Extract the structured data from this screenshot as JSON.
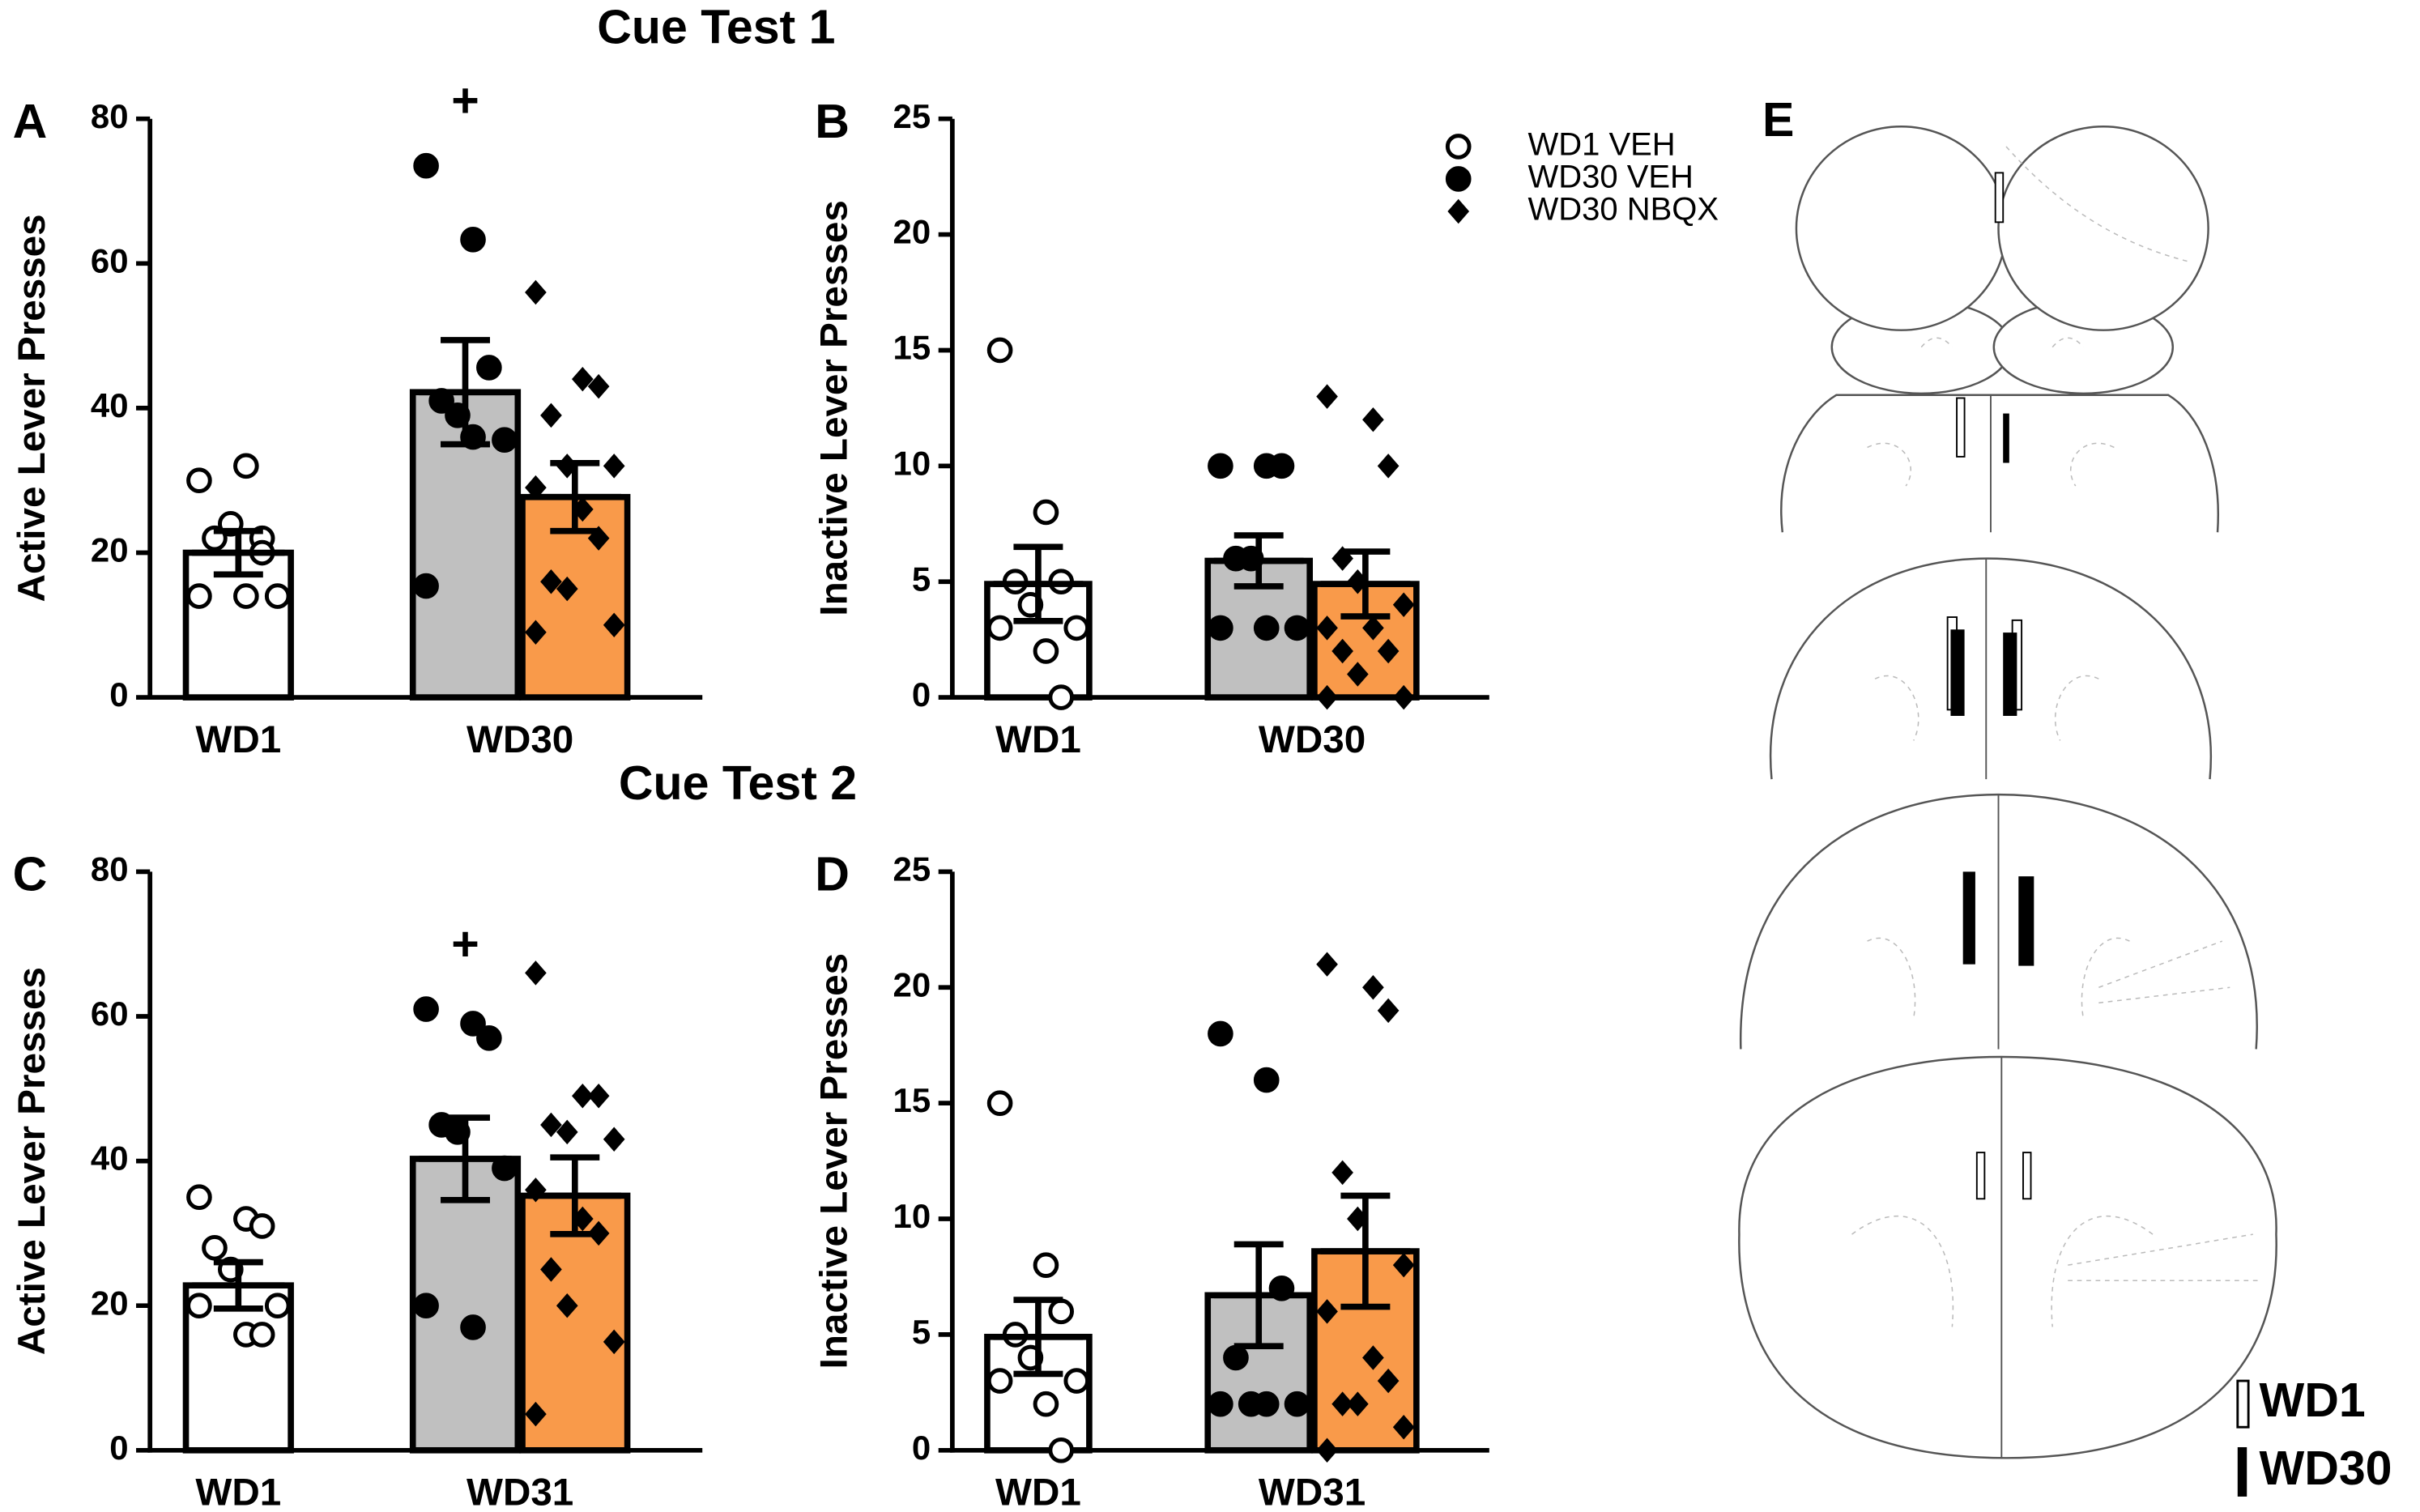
{
  "titles": [
    "Cue Test 1",
    "Cue Test 2"
  ],
  "series_styles": [
    {
      "name": "WD1 VEH",
      "color": "#ffffff",
      "marker": "circle-open"
    },
    {
      "name": "WD30 VEH",
      "color": "#c0c0c0",
      "marker": "circle"
    },
    {
      "name": "WD30 NBQX",
      "color": "#f99a4a",
      "marker": "diamond"
    }
  ],
  "chart_data": [
    {
      "type": "bar",
      "panel": "A",
      "ylabel": "Active Lever Presses",
      "categories": [
        "WD1",
        "WD30"
      ],
      "ylim": [
        0,
        80
      ],
      "yticks": [
        0,
        20,
        40,
        60,
        80
      ],
      "annotation": "+",
      "series": [
        {
          "values": [
            20,
            null
          ],
          "errors": [
            3,
            null
          ],
          "points": [
            [
              30,
              32,
              22,
              22,
              24,
              14,
              14,
              14,
              20
            ],
            null
          ]
        },
        {
          "values": [
            null,
            42.2
          ],
          "errors": [
            null,
            7.2
          ],
          "points": [
            null,
            [
              73.5,
              63.3,
              45.6,
              41,
              39,
              35.6,
              15.4,
              36
            ]
          ]
        },
        {
          "values": [
            null,
            27.7
          ],
          "errors": [
            null,
            4.7
          ],
          "points": [
            null,
            [
              56,
              44,
              43,
              39,
              32,
              32,
              29,
              26,
              22,
              16,
              15,
              10,
              9
            ]
          ]
        }
      ]
    },
    {
      "type": "bar",
      "panel": "B",
      "ylabel": "Inactive Lever Presses",
      "categories": [
        "WD1",
        "WD30"
      ],
      "ylim": [
        0,
        25
      ],
      "yticks": [
        0,
        5,
        10,
        15,
        20,
        25
      ],
      "series": [
        {
          "values": [
            4.9,
            null
          ],
          "errors": [
            1.6,
            null
          ],
          "points": [
            [
              15,
              8,
              5,
              5,
              4,
              3,
              3,
              2,
              0
            ],
            null
          ]
        },
        {
          "values": [
            null,
            5.9
          ],
          "errors": [
            null,
            1.1
          ],
          "points": [
            null,
            [
              10,
              10,
              10,
              6,
              6,
              3,
              3,
              3
            ]
          ]
        },
        {
          "values": [
            null,
            4.9
          ],
          "errors": [
            null,
            1.4
          ],
          "points": [
            null,
            [
              13,
              12,
              10,
              6,
              5,
              4,
              3,
              3,
              2,
              2,
              1,
              0,
              0
            ]
          ]
        }
      ]
    },
    {
      "type": "bar",
      "panel": "C",
      "ylabel": "Active Lever Presses",
      "categories": [
        "WD1",
        "WD31"
      ],
      "ylim": [
        0,
        80
      ],
      "yticks": [
        0,
        20,
        40,
        60,
        80
      ],
      "annotation": "+",
      "series": [
        {
          "values": [
            22.8,
            null
          ],
          "errors": [
            3.2,
            null
          ],
          "points": [
            [
              35,
              32,
              31,
              28,
              25,
              20,
              20,
              16,
              16
            ],
            null
          ]
        },
        {
          "values": [
            null,
            40.3
          ],
          "errors": [
            null,
            5.7
          ],
          "points": [
            null,
            [
              61,
              59,
              57,
              45,
              44,
              39,
              20,
              17
            ]
          ]
        },
        {
          "values": [
            null,
            35.2
          ],
          "errors": [
            null,
            5.3
          ],
          "points": [
            null,
            [
              66,
              49,
              49,
              45,
              44,
              43,
              36,
              32,
              30,
              25,
              20,
              15,
              5
            ]
          ]
        }
      ]
    },
    {
      "type": "bar",
      "panel": "D",
      "ylabel": "Inactive Lever Presses",
      "categories": [
        "WD1",
        "WD31"
      ],
      "ylim": [
        0,
        25
      ],
      "yticks": [
        0,
        5,
        10,
        15,
        20,
        25
      ],
      "series": [
        {
          "values": [
            4.9,
            null
          ],
          "errors": [
            1.6,
            null
          ],
          "points": [
            [
              15,
              8,
              6,
              5,
              4,
              3,
              3,
              2,
              0
            ],
            null
          ]
        },
        {
          "values": [
            null,
            6.7
          ],
          "errors": [
            null,
            2.2
          ],
          "points": [
            null,
            [
              18,
              16,
              7,
              4,
              2,
              2,
              2,
              2
            ]
          ]
        },
        {
          "values": [
            null,
            8.6
          ],
          "errors": [
            null,
            2.4
          ],
          "points": [
            null,
            [
              21,
              20,
              19,
              12,
              10,
              8,
              6,
              4,
              3,
              2,
              2,
              1,
              0
            ]
          ]
        }
      ]
    }
  ],
  "panel_e": {
    "label": "E",
    "legend": [
      "WD1",
      "WD30"
    ]
  }
}
